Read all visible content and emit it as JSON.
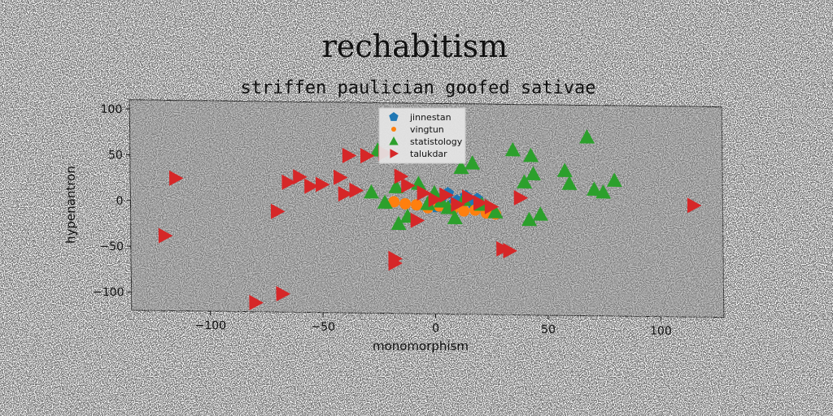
{
  "chart_data": {
    "type": "scatter",
    "title": "rechabitism",
    "subtitle": "striffen paulician goofed sativae",
    "xlabel": "monomorphism",
    "ylabel": "hypenantron",
    "xlim": [
      -135,
      128
    ],
    "ylim": [
      -120,
      110
    ],
    "xticks": [
      -100,
      -50,
      0,
      50,
      100
    ],
    "xtick_labels": [
      "−100",
      "−50",
      "0",
      "50",
      "100"
    ],
    "yticks": [
      100,
      50,
      0,
      -50,
      -100
    ],
    "ytick_labels": [
      "100",
      "50",
      "0",
      "−50",
      "−100"
    ],
    "grid": false,
    "legend_position": "top-center",
    "background_color": "#808080",
    "series": [
      {
        "name": "jinnestan",
        "marker": "pentagon",
        "color": "#1f77b4",
        "x": [
          3,
          8,
          10,
          14,
          17,
          19,
          1,
          6
        ],
        "y": [
          6,
          0,
          4,
          9,
          2,
          6,
          -3,
          12
        ]
      },
      {
        "name": "vingtun",
        "marker": "circle",
        "color": "#ff7f0e",
        "x": [
          -18,
          -13,
          -8,
          -3,
          2,
          8,
          13,
          18,
          23,
          27
        ],
        "y": [
          2,
          0,
          -1,
          -4,
          -2,
          -5,
          -7,
          -6,
          -9,
          -10
        ]
      },
      {
        "name": "statistology",
        "marker": "triangle-up",
        "color": "#2ca02c",
        "x": [
          -28,
          -25,
          -22,
          -17,
          -16,
          -12,
          -7,
          -3,
          0,
          3,
          6,
          9,
          12,
          13,
          17,
          21,
          27,
          35,
          40,
          43,
          44,
          42,
          47,
          58,
          60,
          68,
          71,
          75,
          80
        ],
        "y": [
          12,
          58,
          1,
          18,
          -22,
          -14,
          22,
          0,
          12,
          3,
          -4,
          -15,
          40,
          5,
          45,
          0,
          -8,
          60,
          25,
          54,
          34,
          -16,
          -10,
          38,
          24,
          75,
          18,
          15,
          28
        ]
      },
      {
        "name": "talukdar",
        "marker": "triangle-right",
        "color": "#d62728",
        "x": [
          -115,
          -120,
          -70,
          -65,
          -60,
          -55,
          -50,
          -42,
          -40,
          -35,
          -38,
          -30,
          -22,
          -15,
          -12,
          -8,
          -5,
          0,
          5,
          10,
          15,
          20,
          25,
          30,
          33,
          38,
          115,
          -80,
          -68,
          -18,
          -18
        ],
        "y": [
          25,
          -38,
          -10,
          22,
          28,
          18,
          20,
          28,
          10,
          14,
          52,
          52,
          55,
          30,
          20,
          -18,
          12,
          5,
          10,
          0,
          8,
          2,
          -2,
          -48,
          -50,
          8,
          2,
          -110,
          -100,
          -60,
          -65
        ]
      }
    ]
  }
}
